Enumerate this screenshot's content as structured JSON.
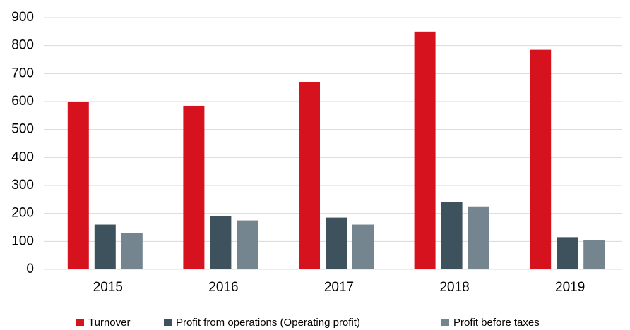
{
  "chart_data": {
    "type": "bar",
    "categories": [
      "2015",
      "2016",
      "2017",
      "2018",
      "2019"
    ],
    "series": [
      {
        "name": "Turnover",
        "color": "#d7121f",
        "values": [
          600,
          585,
          670,
          850,
          785
        ]
      },
      {
        "name": "Profit from operations (Operating profit)",
        "color": "#3d525d",
        "values": [
          160,
          190,
          185,
          240,
          115
        ]
      },
      {
        "name": "Profit before taxes",
        "color": "#74858f",
        "values": [
          130,
          175,
          160,
          225,
          105
        ]
      }
    ],
    "ylim": [
      0,
      900
    ],
    "yticks": [
      0,
      100,
      200,
      300,
      400,
      500,
      600,
      700,
      800,
      900
    ],
    "grid": true,
    "legend": "bottom"
  }
}
